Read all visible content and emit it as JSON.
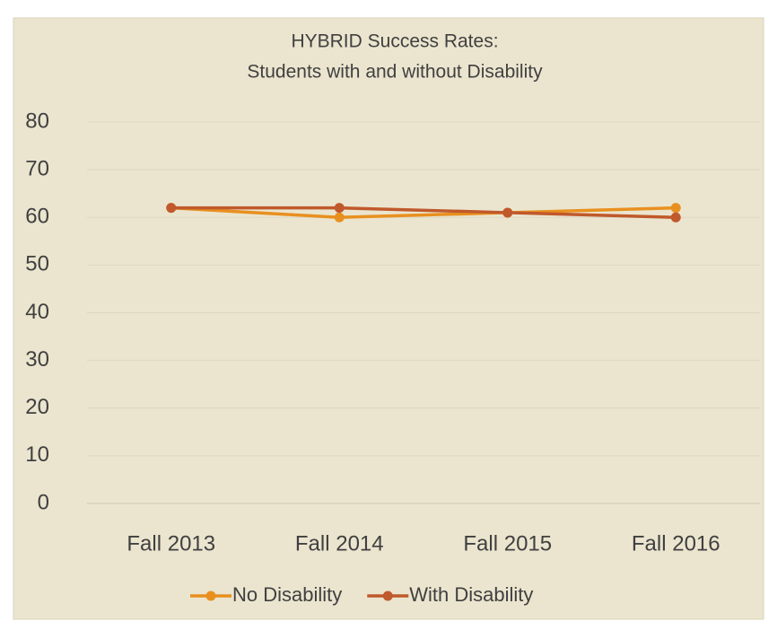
{
  "chart_data": {
    "type": "line",
    "title": [
      "HYBRID Success Rates:",
      "Students with and without Disability"
    ],
    "categories": [
      "Fall 2013",
      "Fall 2014",
      "Fall 2015",
      "Fall 2016"
    ],
    "series": [
      {
        "name": "No Disability",
        "color": "#e8901f",
        "values": [
          62,
          60,
          61,
          62
        ]
      },
      {
        "name": "With Disability",
        "color": "#c0592b",
        "values": [
          62,
          62,
          61,
          60
        ]
      }
    ],
    "ylim": [
      0,
      80
    ],
    "yticks": [
      0,
      10,
      20,
      30,
      40,
      50,
      60,
      70,
      80
    ],
    "grid": true,
    "legend": "bottom"
  }
}
